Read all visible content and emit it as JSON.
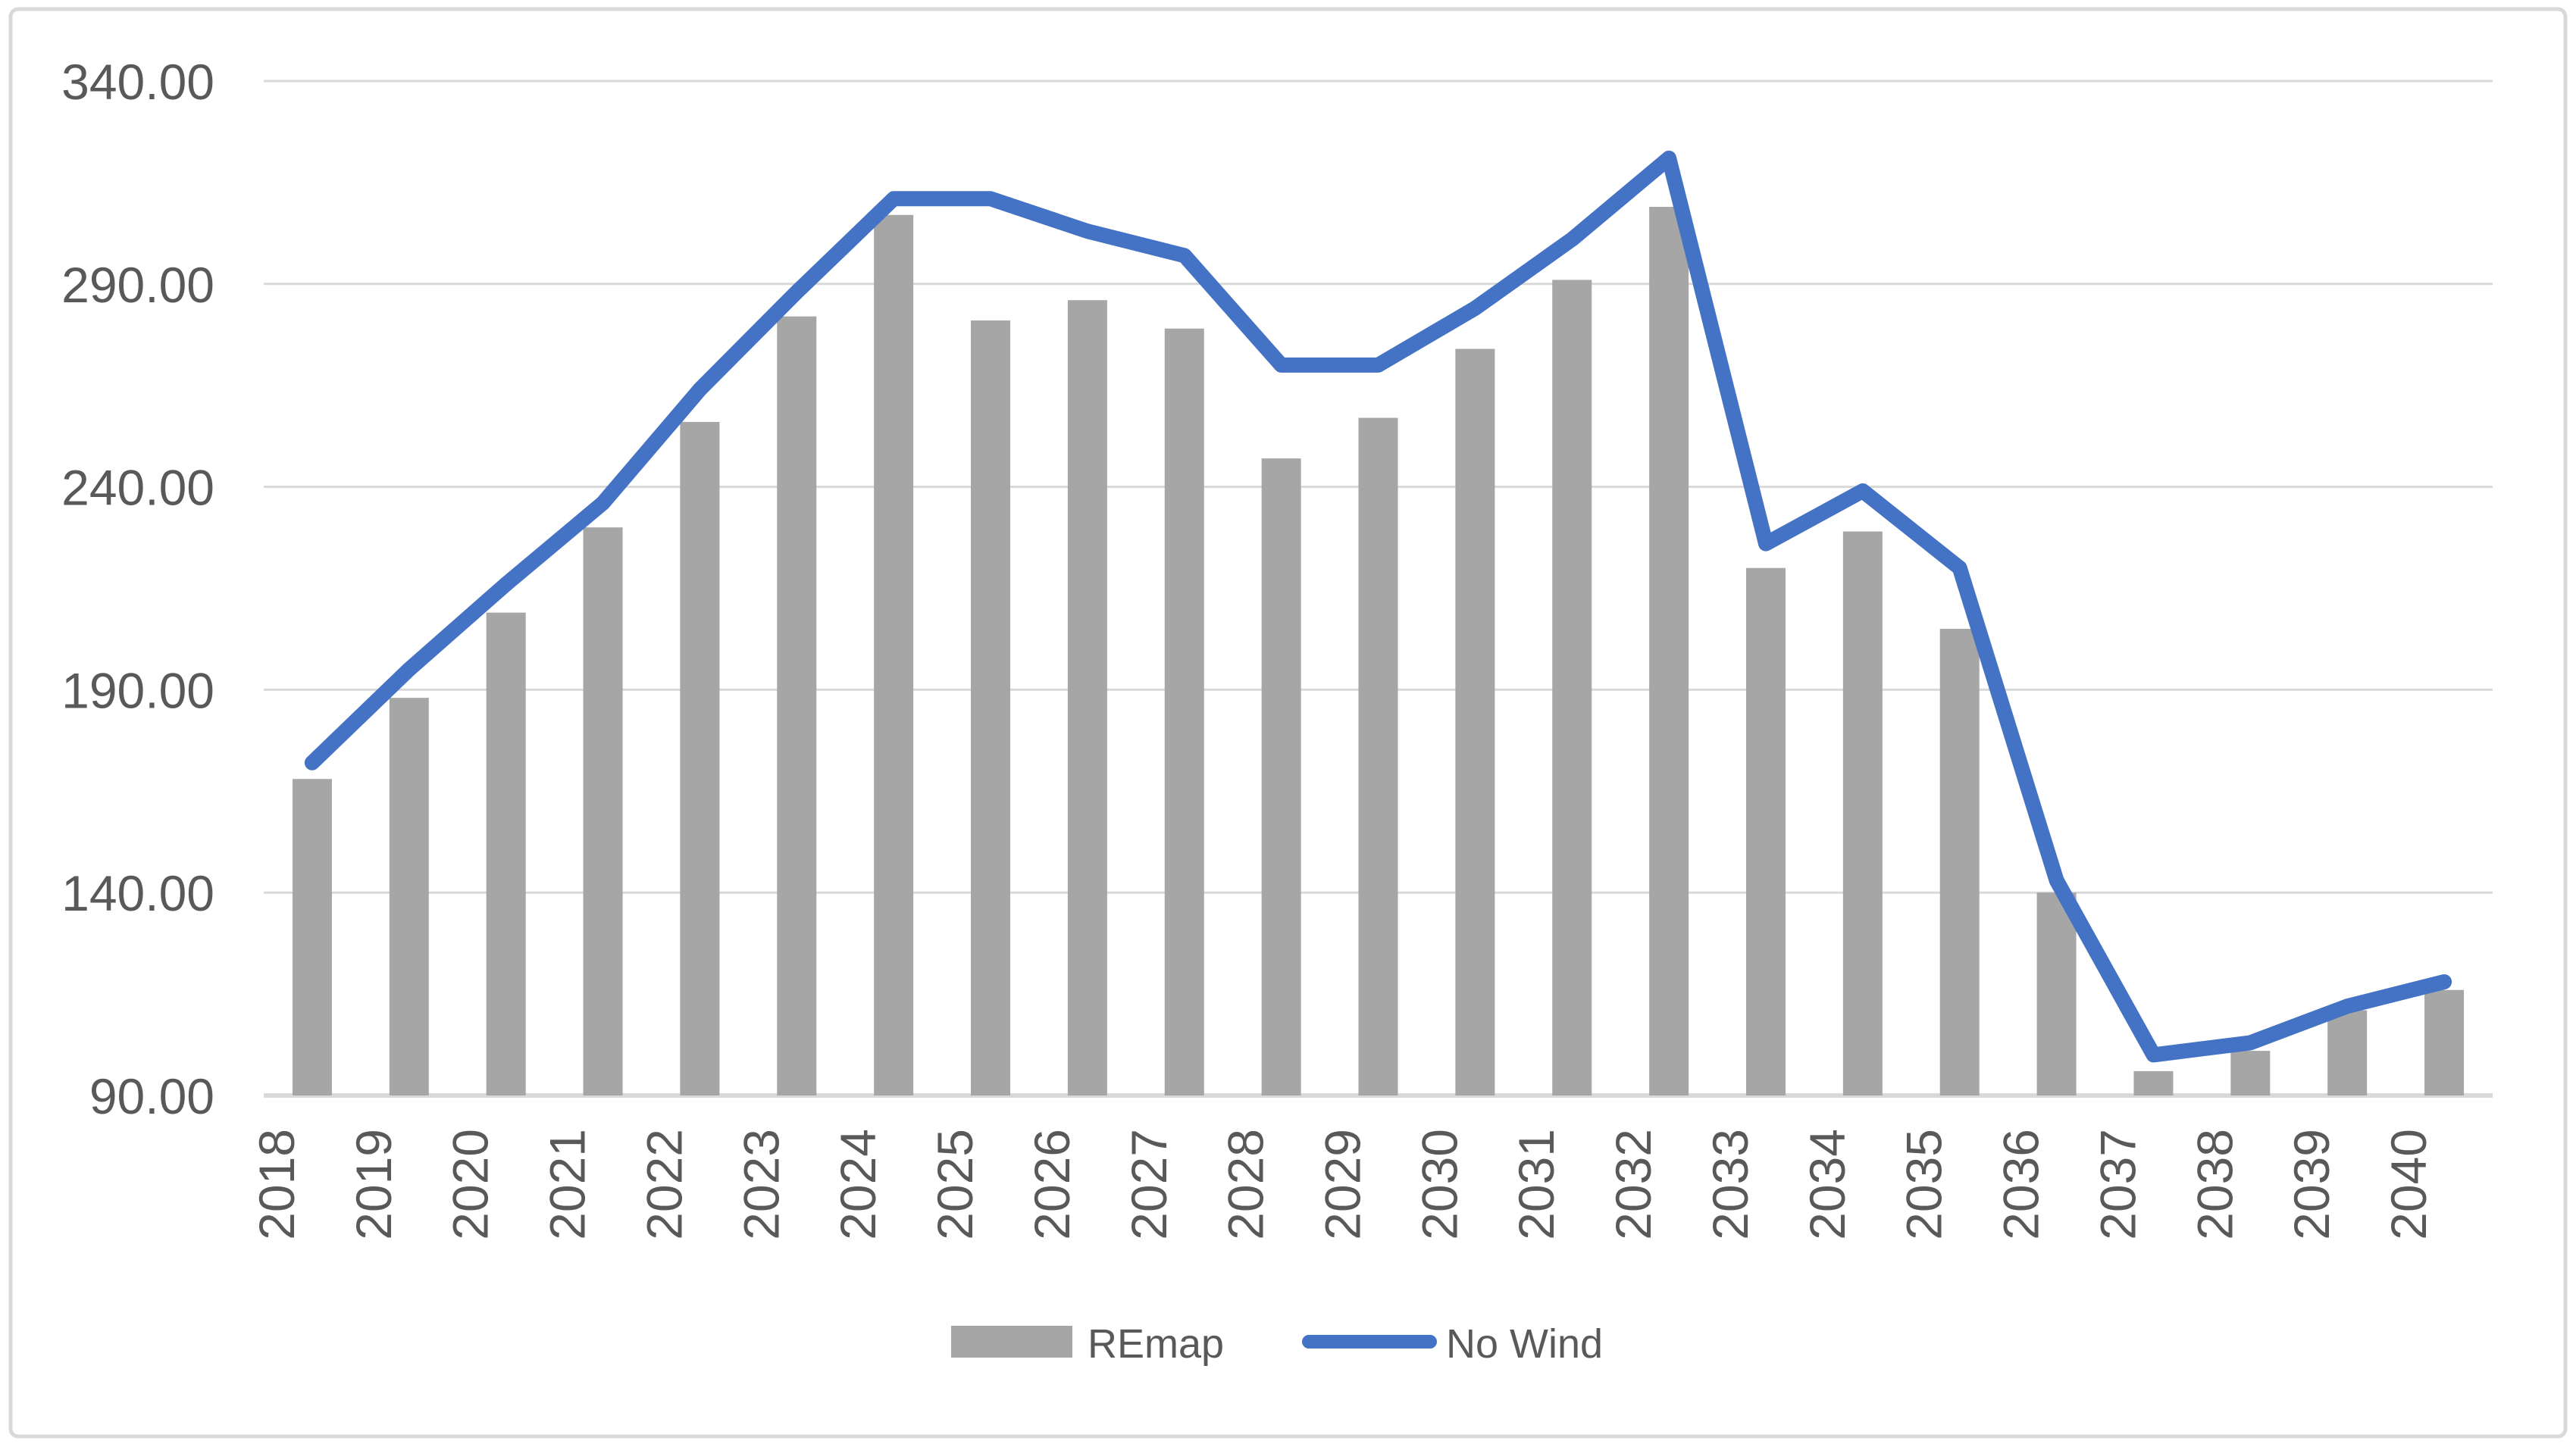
{
  "chart_data": {
    "type": "bar",
    "subtype": "combo-bar-line",
    "title": "",
    "xlabel": "",
    "ylabel": "",
    "categories": [
      "2018",
      "2019",
      "2020",
      "2021",
      "2022",
      "2023",
      "2024",
      "2025",
      "2026",
      "2027",
      "2028",
      "2029",
      "2030",
      "2031",
      "2032",
      "2033",
      "2034",
      "2035",
      "2036",
      "2037",
      "2038",
      "2039",
      "2040"
    ],
    "series": [
      {
        "name": "REmap",
        "type": "bar",
        "color": "#a6a6a6",
        "values": [
          168,
          188,
          209,
          230,
          256,
          282,
          307,
          281,
          286,
          279,
          247,
          257,
          274,
          291,
          309,
          220,
          229,
          205,
          140,
          96,
          101,
          111,
          116
        ]
      },
      {
        "name": "No Wind",
        "type": "line",
        "color": "#4472c4",
        "values": [
          172,
          195,
          216,
          236,
          264,
          288,
          311,
          311,
          303,
          297,
          270,
          270,
          284,
          301,
          321,
          226,
          239,
          220,
          143,
          100,
          103,
          112,
          118
        ]
      }
    ],
    "y_axis": {
      "min": 90,
      "max": 340,
      "step": 50,
      "tick_labels": [
        "340.00",
        "290.00",
        "240.00",
        "190.00",
        "140.00",
        "90.00"
      ],
      "tick_values": [
        340,
        290,
        240,
        190,
        140,
        90
      ]
    },
    "grid": "horizontal",
    "legend_position": "bottom",
    "legend": [
      {
        "label": "REmap",
        "swatch": "rect",
        "color": "#a6a6a6"
      },
      {
        "label": "No Wind",
        "swatch": "line",
        "color": "#4472c4"
      }
    ]
  },
  "colors": {
    "bar_fill": "#a6a6a6",
    "line_stroke": "#4472c4",
    "gridline": "#d9d9d9",
    "axis_line": "#d9d9d9",
    "text": "#595959",
    "chart_border": "#d9d9d9",
    "background": "#ffffff"
  }
}
